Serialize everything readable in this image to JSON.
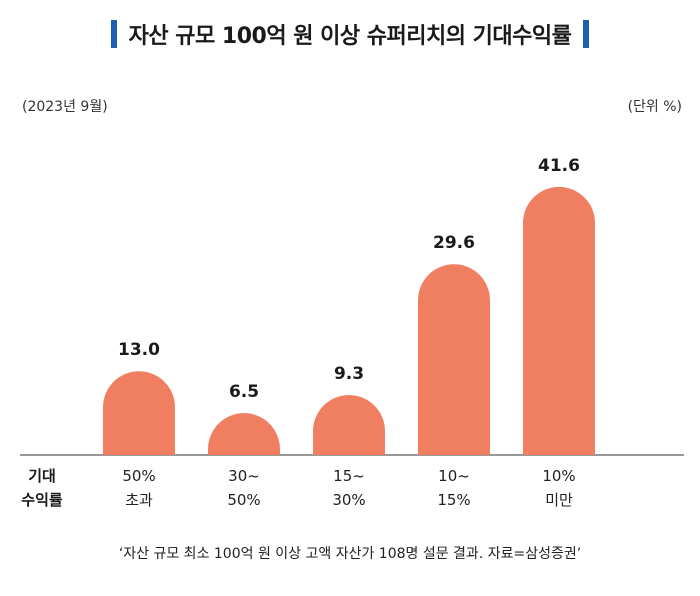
{
  "title": "자산 규모 100억 원 이상 슈퍼리치의 기대수익률",
  "subtitle": "(2023년 9월)",
  "unit": "(단위 %)",
  "category_header": [
    "기대",
    "수익률"
  ],
  "source": "‘자산 규모 최소 100억 원 이상 고액 자산가 108명 설문 결과. 자료=삼성증권’",
  "colors": {
    "bar": "#f07f62",
    "title_bar": "#1c5fb0"
  },
  "chart_data": {
    "type": "bar",
    "categories": [
      [
        "50%",
        "초과"
      ],
      [
        "30~",
        "50%"
      ],
      [
        "15~",
        "30%"
      ],
      [
        "10~",
        "15%"
      ],
      [
        "10%",
        "미만"
      ]
    ],
    "values": [
      13.0,
      6.5,
      9.3,
      29.6,
      41.6
    ],
    "value_labels": [
      "13.0",
      "6.5",
      "9.3",
      "29.6",
      "41.6"
    ],
    "ylim": [
      0,
      45
    ],
    "grid": false,
    "legend": "none"
  }
}
